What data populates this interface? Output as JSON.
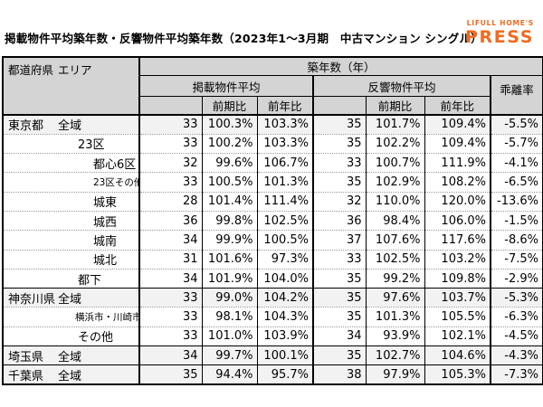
{
  "title": "掲載物件平均築年数・反響物件平均築年数（2023年1～3月期　中古マンション シングル）",
  "logo": {
    "brand_line": "LIFULL HOME'S",
    "brand_name": "PRESS"
  },
  "colors": {
    "brand_orange": "#f2691c",
    "header_bg": "#d4d4d4",
    "shaded_row_bg": "#f2f2f2",
    "border_black": "#000000"
  },
  "chart_data": {
    "type": "table",
    "title": "掲載物件平均築年数・反響物件平均築年数（2023年1～3月期　中古マンション シングル）",
    "headers": {
      "corner_prefecture": "都道府県",
      "corner_area": "エリア",
      "building_age": "築年数（年）",
      "listed_avg": "掲載物件平均",
      "response_avg": "反響物件平均",
      "divergence": "乖離率",
      "mom": "前期比",
      "yoy": "前年比"
    },
    "rows": [
      {
        "prefecture": "東京都",
        "area": "全域",
        "indent": "pref",
        "small": false,
        "shaded": true,
        "separator": "none",
        "listed_avg": "33",
        "listed_mom": "100.3%",
        "listed_yoy": "103.3%",
        "response_avg": "35",
        "response_mom": "101.7%",
        "response_yoy": "109.4%",
        "divergence": "-5.5%"
      },
      {
        "area": "23区",
        "indent": "l1",
        "small": false,
        "shaded": false,
        "separator": "dotted",
        "listed_avg": "33",
        "listed_mom": "100.2%",
        "listed_yoy": "103.3%",
        "response_avg": "35",
        "response_mom": "102.2%",
        "response_yoy": "109.4%",
        "divergence": "-5.7%"
      },
      {
        "area": "都心6区",
        "indent": "l2",
        "small": false,
        "shaded": false,
        "separator": "dotted",
        "listed_avg": "32",
        "listed_mom": "99.6%",
        "listed_yoy": "106.7%",
        "response_avg": "33",
        "response_mom": "100.7%",
        "response_yoy": "111.9%",
        "divergence": "-4.1%"
      },
      {
        "area": "23区その他",
        "indent": "l2",
        "small": true,
        "shaded": false,
        "separator": "dotted",
        "listed_avg": "33",
        "listed_mom": "100.5%",
        "listed_yoy": "101.3%",
        "response_avg": "35",
        "response_mom": "102.9%",
        "response_yoy": "108.2%",
        "divergence": "-6.5%"
      },
      {
        "area": "城東",
        "indent": "l2",
        "small": false,
        "shaded": false,
        "separator": "dotted",
        "listed_avg": "28",
        "listed_mom": "101.4%",
        "listed_yoy": "111.4%",
        "response_avg": "32",
        "response_mom": "110.0%",
        "response_yoy": "120.0%",
        "divergence": "-13.6%"
      },
      {
        "area": "城西",
        "indent": "l2",
        "small": false,
        "shaded": false,
        "separator": "dotted",
        "listed_avg": "36",
        "listed_mom": "99.8%",
        "listed_yoy": "102.5%",
        "response_avg": "36",
        "response_mom": "98.4%",
        "response_yoy": "106.0%",
        "divergence": "-1.5%"
      },
      {
        "area": "城南",
        "indent": "l2",
        "small": false,
        "shaded": false,
        "separator": "dotted",
        "listed_avg": "34",
        "listed_mom": "99.9%",
        "listed_yoy": "100.5%",
        "response_avg": "37",
        "response_mom": "107.6%",
        "response_yoy": "117.6%",
        "divergence": "-8.6%"
      },
      {
        "area": "城北",
        "indent": "l2",
        "small": false,
        "shaded": false,
        "separator": "dotted",
        "listed_avg": "31",
        "listed_mom": "101.6%",
        "listed_yoy": "97.3%",
        "response_avg": "33",
        "response_mom": "102.5%",
        "response_yoy": "103.2%",
        "divergence": "-7.5%"
      },
      {
        "area": "都下",
        "indent": "l1",
        "small": false,
        "shaded": false,
        "separator": "dotted",
        "listed_avg": "34",
        "listed_mom": "101.9%",
        "listed_yoy": "104.0%",
        "response_avg": "35",
        "response_mom": "99.2%",
        "response_yoy": "109.8%",
        "divergence": "-2.9%"
      },
      {
        "prefecture": "神奈川県",
        "area": "全域",
        "indent": "pref",
        "small": false,
        "shaded": true,
        "separator": "solid",
        "listed_avg": "33",
        "listed_mom": "99.0%",
        "listed_yoy": "104.2%",
        "response_avg": "35",
        "response_mom": "97.6%",
        "response_yoy": "103.7%",
        "divergence": "-5.3%"
      },
      {
        "area": "横浜市・川崎市",
        "indent": "l1",
        "small": true,
        "shaded": false,
        "separator": "dotted",
        "listed_avg": "33",
        "listed_mom": "98.1%",
        "listed_yoy": "104.3%",
        "response_avg": "35",
        "response_mom": "101.3%",
        "response_yoy": "105.5%",
        "divergence": "-6.3%"
      },
      {
        "area": "その他",
        "indent": "l1",
        "small": false,
        "shaded": false,
        "separator": "dotted",
        "listed_avg": "33",
        "listed_mom": "101.0%",
        "listed_yoy": "103.9%",
        "response_avg": "34",
        "response_mom": "93.9%",
        "response_yoy": "102.1%",
        "divergence": "-4.5%"
      },
      {
        "prefecture": "埼玉県",
        "area": "全域",
        "indent": "pref",
        "small": false,
        "shaded": true,
        "separator": "solid",
        "listed_avg": "34",
        "listed_mom": "99.7%",
        "listed_yoy": "100.1%",
        "response_avg": "35",
        "response_mom": "102.7%",
        "response_yoy": "104.6%",
        "divergence": "-4.3%"
      },
      {
        "prefecture": "千葉県",
        "area": "全域",
        "indent": "pref",
        "small": false,
        "shaded": true,
        "separator": "solid",
        "listed_avg": "35",
        "listed_mom": "94.4%",
        "listed_yoy": "95.7%",
        "response_avg": "38",
        "response_mom": "97.9%",
        "response_yoy": "105.3%",
        "divergence": "-7.3%"
      }
    ]
  }
}
